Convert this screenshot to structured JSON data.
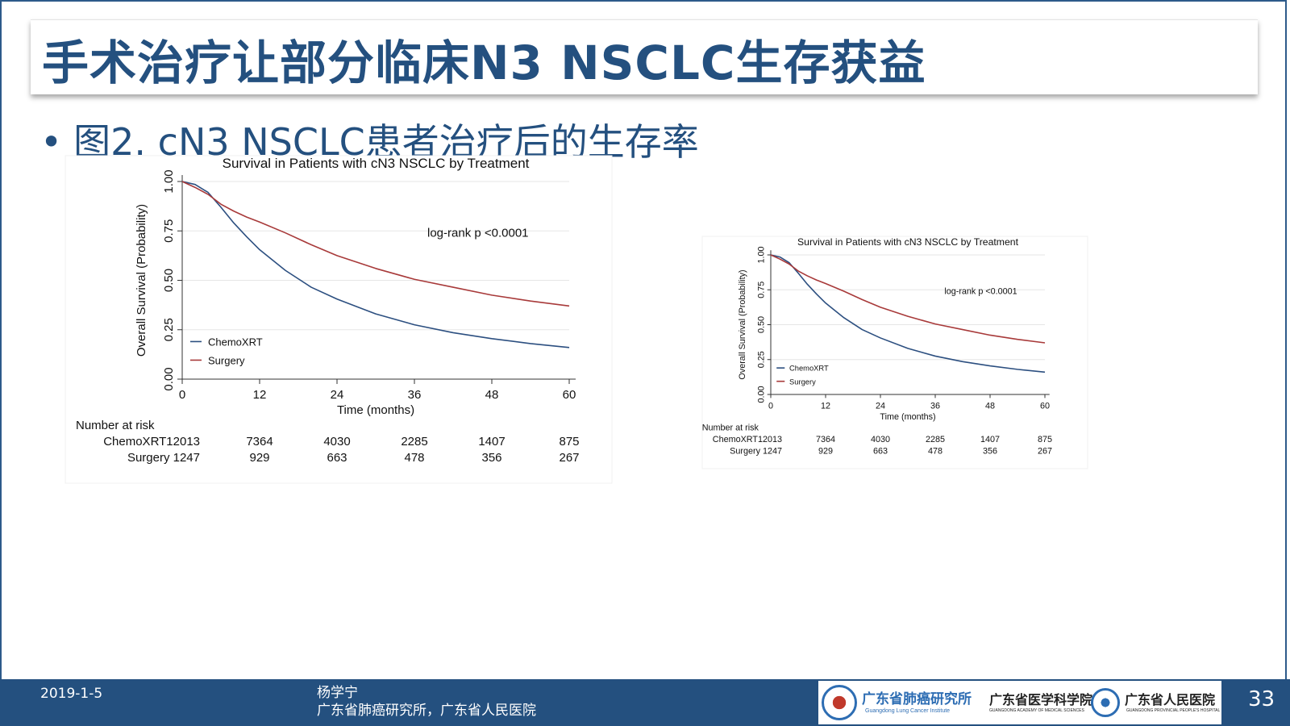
{
  "slide": {
    "title": "手术治疗让部分临床N3 NSCLC生存获益",
    "bullet_symbol": "•",
    "bullet": "图2. cN3 NSCLC患者治疗后的生存率"
  },
  "footer": {
    "date": "2019-1-5",
    "author": "杨学宁",
    "affiliation": "广东省肺癌研究所，广东省人民医院",
    "page_number": "33",
    "logos": [
      {
        "text": "广东省肺癌研究所",
        "subtext": "Guangdong Lung Cancer Institute"
      },
      {
        "text": "广东省医学科学院",
        "subtext": "GUANGDONG ACADEMY OF MEDICAL SCIENCES"
      },
      {
        "text": "广东省人民医院",
        "subtext": "GUANGDONG PROVINCIAL PEOPLE'S HOSPITAL"
      }
    ]
  },
  "chart_data": [
    {
      "type": "line",
      "title": "Survival in Patients with cN3 NSCLC by Treatment",
      "xlabel": "Time (months)",
      "ylabel": "Overall Survival (Probability)",
      "xlim": [
        0,
        60
      ],
      "ylim": [
        0,
        1
      ],
      "x_ticks": [
        "0",
        "12",
        "24",
        "36",
        "48",
        "60"
      ],
      "y_ticks": [
        "0.00",
        "0.25",
        "0.50",
        "0.75",
        "1.00"
      ],
      "grid": true,
      "legend_position": "bottom-left",
      "annotation": "log-rank p <0.0001",
      "x": [
        0,
        2,
        4,
        6,
        8,
        10,
        12,
        16,
        20,
        24,
        30,
        36,
        42,
        48,
        54,
        60
      ],
      "series": [
        {
          "name": "ChemoXRT",
          "color": "#2c4f80",
          "values": [
            1.0,
            0.985,
            0.945,
            0.87,
            0.79,
            0.72,
            0.655,
            0.55,
            0.465,
            0.405,
            0.33,
            0.275,
            0.235,
            0.205,
            0.18,
            0.16
          ]
        },
        {
          "name": "Surgery",
          "color": "#a83a3a",
          "values": [
            1.0,
            0.97,
            0.935,
            0.885,
            0.85,
            0.82,
            0.795,
            0.74,
            0.68,
            0.625,
            0.56,
            0.505,
            0.465,
            0.425,
            0.395,
            0.37
          ]
        }
      ],
      "risk_table": {
        "header": "Number at risk",
        "rows": [
          {
            "label": "ChemoXRT12013",
            "values": [
              "7364",
              "4030",
              "2285",
              "1407",
              "875"
            ]
          },
          {
            "label": "Surgery 1247",
            "values": [
              "929",
              "663",
              "478",
              "356",
              "267"
            ]
          }
        ]
      }
    },
    {
      "type": "line",
      "title": "Survival in Patients with cN3 NSCLC by Treatment",
      "xlabel": "Time (months)",
      "ylabel": "Overall Survival (Probability)",
      "xlim": [
        0,
        60
      ],
      "ylim": [
        0,
        1
      ],
      "x_ticks": [
        "0",
        "12",
        "24",
        "36",
        "48",
        "60"
      ],
      "y_ticks": [
        "0.00",
        "0.25",
        "0.50",
        "0.75",
        "1.00"
      ],
      "grid": true,
      "legend_position": "bottom-left",
      "annotation": "log-rank p <0.0001",
      "x": [
        0,
        2,
        4,
        6,
        8,
        10,
        12,
        16,
        20,
        24,
        30,
        36,
        42,
        48,
        54,
        60
      ],
      "series": [
        {
          "name": "ChemoXRT",
          "color": "#2c4f80",
          "values": [
            1.0,
            0.985,
            0.945,
            0.87,
            0.79,
            0.72,
            0.655,
            0.55,
            0.465,
            0.405,
            0.33,
            0.275,
            0.235,
            0.205,
            0.18,
            0.16
          ]
        },
        {
          "name": "Surgery",
          "color": "#a83a3a",
          "values": [
            1.0,
            0.97,
            0.935,
            0.885,
            0.85,
            0.82,
            0.795,
            0.74,
            0.68,
            0.625,
            0.56,
            0.505,
            0.465,
            0.425,
            0.395,
            0.37
          ]
        }
      ],
      "risk_table": {
        "header": "Number at risk",
        "rows": [
          {
            "label": "ChemoXRT12013",
            "values": [
              "7364",
              "4030",
              "2285",
              "1407",
              "875"
            ]
          },
          {
            "label": "Surgery 1247",
            "values": [
              "929",
              "663",
              "478",
              "356",
              "267"
            ]
          }
        ]
      }
    }
  ]
}
